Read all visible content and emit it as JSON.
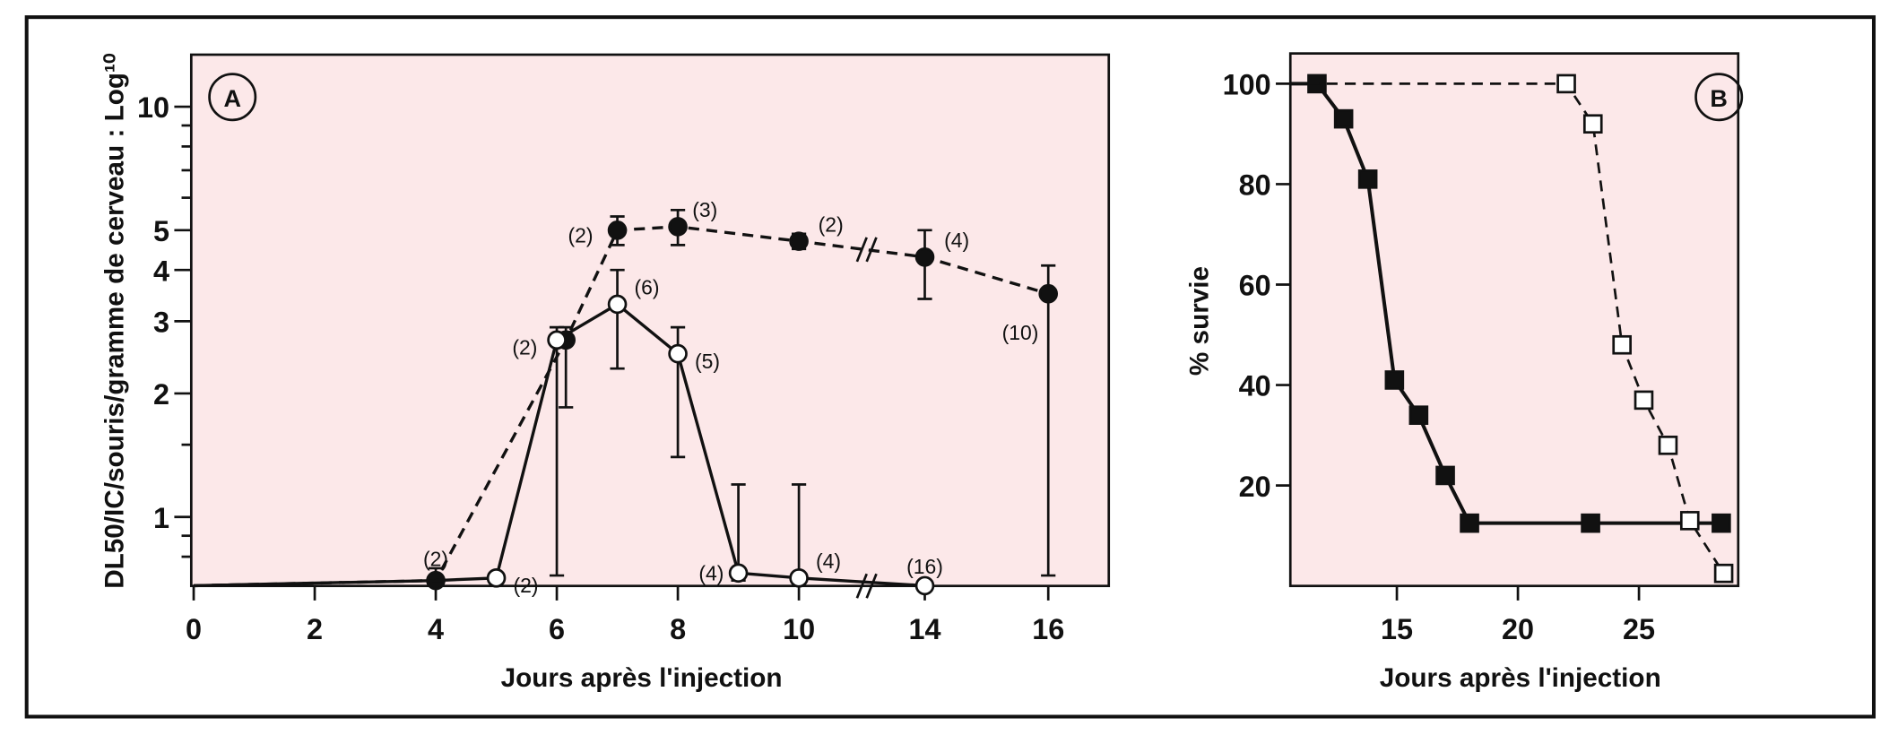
{
  "chart_data": [
    {
      "type": "line",
      "panel": "A",
      "xlabel": "Jours après l'injection",
      "ylabel": "DL50/IC/souris/gramme de cerveau : Log¹⁰",
      "yscale": "log",
      "ylim": [
        0.68,
        13.4
      ],
      "xticks": [
        0,
        2,
        4,
        6,
        8,
        10,
        14,
        16
      ],
      "yticks": [
        1,
        2,
        3,
        4,
        5,
        10
      ],
      "axis_break": "between 10 and 14",
      "series": [
        {
          "name": "filled-dashed",
          "marker": "filled-circle",
          "line": "dashed",
          "points": [
            {
              "x": 0,
              "y": 0.68
            },
            {
              "x": 4,
              "y": 0.7,
              "err": [
                0.7,
                0.75
              ],
              "n": "(2)"
            },
            {
              "x": 6.15,
              "y": 2.7,
              "err": [
                1.85,
                2.9
              ]
            },
            {
              "x": 7,
              "y": 5.0,
              "err": [
                4.6,
                5.4
              ],
              "n": "(2)"
            },
            {
              "x": 8,
              "y": 5.1,
              "err": [
                4.6,
                5.6
              ],
              "n": "(3)"
            },
            {
              "x": 10,
              "y": 4.7,
              "err": [
                4.5,
                4.9
              ],
              "n": "(2)"
            },
            {
              "x": 14,
              "y": 4.3,
              "err": [
                3.4,
                5.0
              ],
              "n": "(4)"
            },
            {
              "x": 16,
              "y": 3.5,
              "err": [
                0.72,
                4.1
              ],
              "n": "(10)"
            }
          ]
        },
        {
          "name": "open-solid",
          "marker": "open-circle",
          "line": "solid",
          "points": [
            {
              "x": 0,
              "y": 0.68
            },
            {
              "x": 4,
              "y": 0.7
            },
            {
              "x": 5,
              "y": 0.71,
              "n": "(2)"
            },
            {
              "x": 6,
              "y": 2.7,
              "err": [
                0.72,
                2.9
              ],
              "n": "(2)"
            },
            {
              "x": 7,
              "y": 3.3,
              "err": [
                2.3,
                4.0
              ],
              "n": "(6)"
            },
            {
              "x": 8,
              "y": 2.5,
              "err": [
                1.4,
                2.9
              ],
              "n": "(5)"
            },
            {
              "x": 9,
              "y": 0.73,
              "err": [
                0.7,
                1.2
              ],
              "n": "(4)"
            },
            {
              "x": 10,
              "y": 0.71,
              "err": [
                0.7,
                1.2
              ],
              "n": "(4)"
            },
            {
              "x": 14,
              "y": 0.68,
              "n": "(16)"
            }
          ]
        }
      ],
      "badge": "A"
    },
    {
      "type": "line",
      "panel": "B",
      "xlabel": "Jours après l'injection",
      "ylabel": "% survie",
      "xlim": [
        10.6,
        29.1
      ],
      "ylim": [
        0,
        106
      ],
      "xticks": [
        15,
        20,
        25
      ],
      "yticks": [
        20,
        40,
        60,
        80,
        100
      ],
      "series": [
        {
          "name": "filled-solid",
          "marker": "filled-square",
          "line": "solid",
          "x": [
            11.7,
            12.8,
            13.8,
            14.9,
            15.9,
            17,
            18,
            23,
            28.4
          ],
          "y": [
            100,
            93,
            81,
            41,
            34,
            22,
            12.5,
            12.5,
            12.5
          ]
        },
        {
          "name": "open-dashed",
          "marker": "open-square",
          "line": "dashed",
          "x": [
            10.6,
            22,
            23.1,
            24.3,
            25.2,
            26.2,
            27.1,
            28.5
          ],
          "y": [
            100,
            100,
            92,
            48,
            37,
            28,
            13,
            2.5
          ]
        }
      ],
      "badge": "B"
    }
  ]
}
